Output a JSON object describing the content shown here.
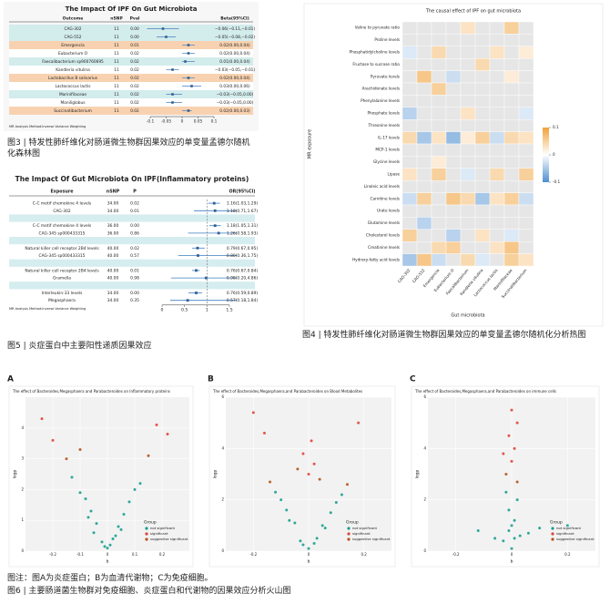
{
  "fig3": {
    "title": "The Impact Of IPF On Gut Microbiota",
    "headers": [
      "Outcome",
      "nSNP",
      "Pval",
      "Beta(95%CI)"
    ],
    "rows": [
      {
        "cells": [
          "CAG-302",
          "11",
          "0.00",
          "−0.06(−0.11,−0.01)"
        ],
        "est": -0.06,
        "lo": -0.11,
        "hi": -0.01
      },
      {
        "cells": [
          "CAG-552",
          "11",
          "0.00",
          "−0.05(−0.08,−0.02)"
        ],
        "est": -0.05,
        "lo": -0.08,
        "hi": -0.02
      },
      {
        "cells": [
          "Emergencia",
          "11",
          "0.01",
          "0.02(0.00,0.04)"
        ],
        "est": 0.02,
        "lo": 0.0,
        "hi": 0.04
      },
      {
        "cells": [
          "Eubacterium O",
          "11",
          "0.02",
          "0.02(0.00,0.04)"
        ],
        "est": 0.02,
        "lo": 0.0,
        "hi": 0.04
      },
      {
        "cells": [
          "Faecalibacterium sp900760695",
          "11",
          "0.02",
          "0.01(0.00,0.04)"
        ],
        "est": 0.01,
        "lo": 0.0,
        "hi": 0.04
      },
      {
        "cells": [
          "Kandleria vitulina",
          "11",
          "0.02",
          "−0.03(−0.05,−0.01)"
        ],
        "est": -0.03,
        "lo": -0.05,
        "hi": -0.01
      },
      {
        "cells": [
          "Lactobacillus B salivarius",
          "11",
          "0.02",
          "0.02(0.00,0.04)"
        ],
        "est": 0.02,
        "lo": 0.0,
        "hi": 0.04
      },
      {
        "cells": [
          "Lactococcus lactis",
          "11",
          "0.02",
          "0.03(0.00,0.06)"
        ],
        "est": 0.03,
        "lo": 0.0,
        "hi": 0.06
      },
      {
        "cells": [
          "Marinifilaceae",
          "11",
          "0.02",
          "−0.03(−0.05,0.00)"
        ],
        "est": -0.03,
        "lo": -0.05,
        "hi": 0.0
      },
      {
        "cells": [
          "Moniliglobus",
          "11",
          "0.02",
          "−0.03(−0.05,0.00)"
        ],
        "est": -0.03,
        "lo": -0.05,
        "hi": 0.0
      },
      {
        "cells": [
          "Succinatibacterium",
          "11",
          "0.02",
          "0.02(0.00,0.03)"
        ],
        "est": 0.02,
        "lo": 0.0,
        "hi": 0.03
      }
    ],
    "xlim": [
      -0.1,
      0.1
    ],
    "xticks": [
      -0.1,
      -0.05,
      0,
      0.05,
      0.1
    ],
    "note": "MR Analysis Method:Inverse Variance Weighting",
    "caption": "图3 | 特发性肺纤维化对肠道微生物群因果效应的单变量孟德尔随机化森林图"
  },
  "fig5": {
    "title": "The Impact Of Gut Microbiota On IPF(Inflammatory proteins)",
    "headers": [
      "Exposure",
      "nSNP",
      "P",
      "OR(95%CI)"
    ],
    "rows": [
      {
        "cells": [
          "C-C motif chemokine 4 levels",
          "34.00",
          "0.02",
          "1.16(1.03,1.29)"
        ],
        "est": 1.16,
        "lo": 1.03,
        "hi": 1.29
      },
      {
        "cells": [
          "CAG-302",
          "34.00",
          "0.01",
          "1.18(0.71,1.67)"
        ],
        "est": 1.18,
        "lo": 0.71,
        "hi": 1.67
      },
      null,
      {
        "cells": [
          "C-C motif chemokine 4 levels",
          "36.00",
          "0.00",
          "1.18(1.05,1.31)"
        ],
        "est": 1.18,
        "lo": 1.05,
        "hi": 1.31
      },
      {
        "cells": [
          "CAG-345 sp000433315",
          "36.00",
          "0.86",
          "1.26(0.58,1.93)"
        ],
        "est": 1.26,
        "lo": 0.58,
        "hi": 1.93
      },
      null,
      {
        "cells": [
          "Natural killer cell receptor 2B4 levels",
          "40.00",
          "0.02",
          "0.79(0.67,0.95)"
        ],
        "est": 0.79,
        "lo": 0.67,
        "hi": 0.95
      },
      {
        "cells": [
          "CAG-345 sp000433315",
          "40.00",
          "0.57",
          "0.80(0.36,1.75)"
        ],
        "est": 0.8,
        "lo": 0.36,
        "hi": 1.75
      },
      null,
      {
        "cells": [
          "Natural killer cell receptor 2B4 levels",
          "40.00",
          "0.01",
          "0.76(0.67,0.84)"
        ],
        "est": 0.76,
        "lo": 0.67,
        "hi": 0.84
      },
      {
        "cells": [
          "Gramella",
          "40.00",
          "0.98",
          "0.98(0.20,4.86)"
        ],
        "est": 0.98,
        "lo": 0.2,
        "hi": 4.86
      },
      null,
      {
        "cells": [
          "Interleukin-33 levels",
          "34.00",
          "0.00",
          "0.76(0.59,0.89)"
        ],
        "est": 0.76,
        "lo": 0.59,
        "hi": 0.89
      },
      {
        "cells": [
          "Megasphaera",
          "34.00",
          "0.35",
          "0.57(0.18,1.84)"
        ],
        "est": 0.57,
        "lo": 0.18,
        "hi": 1.84
      }
    ],
    "xlim": [
      0,
      1.5
    ],
    "xticks": [
      0,
      0.5,
      1,
      1.5
    ],
    "ref": 1,
    "note": "MR Analysis Method:Inverse Variance Weighting",
    "caption": "图5 | 炎症蛋白中主要阳性递质因果效应"
  },
  "fig4": {
    "title": "The causal effect of IPF on gut microbiota",
    "rows": [
      "Valine to pyruvate ratio",
      "Proline levels",
      "Phosphatidylcholine levels",
      "Fructose to sucrose ratio",
      "Pyruvate levels",
      "Arachidonate levels",
      "Phenylalanine levels",
      "Phosphate levels",
      "Threonine levels",
      "IL-17 levels",
      "MCP-1 levels",
      "Glycine levels",
      "Lipase",
      "Linoleic acid levels",
      "Carnitine levels",
      "Urate levels",
      "Glutamine levels",
      "Cholesterol levels",
      "Creatinine levels",
      "Hydroxy-fatty acid levels"
    ],
    "cols": [
      "CAG-302",
      "CAG-552",
      "Emergencia",
      "Eubacterium O",
      "Faecalibacterium",
      "Kandleria vitulina",
      "Lactococcus lactis",
      "Marinifilaceae",
      "Succinatibacterium"
    ],
    "values": [
      [
        null,
        null,
        null,
        null,
        0.03,
        null,
        null,
        0.05,
        null
      ],
      [
        null,
        null,
        null,
        null,
        null,
        null,
        null,
        null,
        null
      ],
      [
        -0.02,
        null,
        0.04,
        null,
        null,
        null,
        0.03,
        null,
        0.02
      ],
      [
        null,
        null,
        null,
        null,
        null,
        0.04,
        null,
        null,
        null
      ],
      [
        null,
        0.06,
        null,
        -0.03,
        null,
        null,
        null,
        0.02,
        null
      ],
      [
        null,
        null,
        0.05,
        null,
        null,
        null,
        null,
        null,
        null
      ],
      [
        null,
        null,
        null,
        null,
        null,
        null,
        null,
        null,
        null
      ],
      [
        -0.04,
        null,
        null,
        null,
        0.03,
        null,
        null,
        null,
        -0.02
      ],
      [
        null,
        null,
        null,
        null,
        null,
        null,
        null,
        null,
        null
      ],
      [
        0.04,
        -0.05,
        0.03,
        -0.06,
        0.02,
        0.05,
        -0.03,
        0.04,
        0.03
      ],
      [
        null,
        null,
        null,
        null,
        null,
        null,
        null,
        null,
        null
      ],
      [
        null,
        null,
        0.02,
        null,
        null,
        null,
        null,
        null,
        null
      ],
      [
        0.03,
        null,
        0.05,
        null,
        -0.02,
        null,
        0.04,
        null,
        0.05
      ],
      [
        null,
        null,
        null,
        null,
        null,
        null,
        null,
        null,
        null
      ],
      [
        -0.03,
        0.05,
        null,
        0.06,
        0.04,
        -0.05,
        0.03,
        0.05,
        -0.03
      ],
      [
        null,
        null,
        null,
        null,
        null,
        null,
        null,
        null,
        null
      ],
      [
        null,
        -0.04,
        null,
        null,
        null,
        null,
        null,
        null,
        null
      ],
      [
        0.05,
        null,
        null,
        -0.04,
        null,
        0.03,
        null,
        -0.02,
        null
      ],
      [
        null,
        null,
        0.04,
        0.05,
        null,
        null,
        0.03,
        0.06,
        null
      ],
      [
        -0.05,
        0.06,
        -0.03,
        null,
        0.04,
        -0.02,
        null,
        0.05,
        0.03
      ]
    ],
    "clim": [
      -0.1,
      0.1
    ],
    "cticks": [
      -0.1,
      0,
      0.1
    ],
    "xlabel": "Gut microbiota",
    "ylabel": "MR exposure",
    "caption": "图4 | 特发性肺纤维化对肠道微生物群因果效应的单变量孟德尔随机化分析热图"
  },
  "fig6": {
    "legend_title": "Group",
    "groups": [
      {
        "name": "not significant",
        "color": "#1a9e8f"
      },
      {
        "name": "significant",
        "color": "#e0443a"
      },
      {
        "name": "suggestive significant",
        "color": "#b5521b"
      }
    ],
    "panels": [
      {
        "letter": "A",
        "title": "The effect of Bacteroides,Megasphaera and Parabacteroides on Inflammatory proteins",
        "xlim": [
          -0.3,
          0.3
        ],
        "xticks": [
          -0.2,
          -0.1,
          0,
          0.1,
          0.2
        ],
        "ylim": [
          0,
          5
        ],
        "yticks": [
          0,
          1,
          2,
          3,
          4
        ],
        "points": [
          [
            0,
            0.1,
            0
          ],
          [
            0.02,
            0.4,
            0
          ],
          [
            -0.02,
            0.3,
            0
          ],
          [
            0.04,
            0.8,
            0
          ],
          [
            -0.04,
            0.9,
            0
          ],
          [
            0.06,
            1.2,
            0
          ],
          [
            -0.06,
            1.3,
            0
          ],
          [
            0.08,
            1.6,
            0
          ],
          [
            -0.08,
            1.7,
            0
          ],
          [
            0.1,
            2.0,
            0
          ],
          [
            -0.1,
            1.9,
            0
          ],
          [
            0.12,
            2.2,
            0
          ],
          [
            -0.13,
            2.4,
            0
          ],
          [
            0.01,
            0.2,
            0
          ],
          [
            -0.01,
            0.15,
            0
          ],
          [
            0.05,
            0.7,
            0
          ],
          [
            -0.07,
            1.1,
            0
          ],
          [
            0.03,
            0.5,
            0
          ],
          [
            -0.05,
            0.6,
            0
          ],
          [
            0.15,
            3.1,
            2
          ],
          [
            -0.15,
            3.0,
            2
          ],
          [
            -0.2,
            3.6,
            1
          ],
          [
            0.22,
            3.8,
            1
          ],
          [
            -0.24,
            4.3,
            1
          ],
          [
            0.18,
            4.1,
            1
          ],
          [
            -0.1,
            3.3,
            2
          ]
        ]
      },
      {
        "letter": "B",
        "title": "The effect of Bacteroides,Megasphaera,and Parabacteroides on Blood Metabolites",
        "xlim": [
          -0.3,
          0.3
        ],
        "xticks": [
          -0.2,
          0,
          0.2
        ],
        "ylim": [
          0,
          6
        ],
        "yticks": [
          0,
          2,
          4,
          6
        ],
        "points": [
          [
            0,
            0.1,
            0
          ],
          [
            0.03,
            0.5,
            0
          ],
          [
            -0.03,
            0.4,
            0
          ],
          [
            0.05,
            1.0,
            0
          ],
          [
            -0.05,
            1.1,
            0
          ],
          [
            0.08,
            1.5,
            0
          ],
          [
            -0.08,
            1.6,
            0
          ],
          [
            0.1,
            1.9,
            0
          ],
          [
            -0.1,
            2.0,
            0
          ],
          [
            0.12,
            2.2,
            0
          ],
          [
            -0.12,
            2.3,
            0
          ],
          [
            0.02,
            0.3,
            0
          ],
          [
            -0.02,
            0.25,
            0
          ],
          [
            0.06,
            0.9,
            0
          ],
          [
            -0.07,
            1.2,
            0
          ],
          [
            0.14,
            2.6,
            2
          ],
          [
            -0.14,
            2.7,
            2
          ],
          [
            0.0,
            3.0,
            1
          ],
          [
            0.02,
            3.4,
            1
          ],
          [
            -0.02,
            3.8,
            1
          ],
          [
            0.01,
            4.3,
            1
          ],
          [
            -0.16,
            4.6,
            1
          ],
          [
            0.18,
            5.0,
            1
          ],
          [
            -0.2,
            5.4,
            1
          ],
          [
            0.04,
            2.8,
            2
          ],
          [
            -0.04,
            3.2,
            2
          ]
        ]
      },
      {
        "letter": "C",
        "title": "The effect of Bacteroides,Megasphaera,and Parabacteroides on immune cells",
        "xlim": [
          -0.3,
          0.3
        ],
        "xticks": [
          -0.2,
          0,
          0.2
        ],
        "ylim": [
          0,
          6
        ],
        "yticks": [
          0,
          2,
          4,
          6
        ],
        "points": [
          [
            0,
            0.1,
            0
          ],
          [
            0.01,
            0.5,
            0
          ],
          [
            -0.01,
            0.8,
            0
          ],
          [
            0.01,
            1.2,
            0
          ],
          [
            -0.01,
            1.6,
            0
          ],
          [
            0.02,
            2.0,
            0
          ],
          [
            -0.02,
            2.3,
            0
          ],
          [
            0.0,
            1.0,
            0
          ],
          [
            0.03,
            0.6,
            0
          ],
          [
            -0.03,
            0.4,
            0
          ],
          [
            0.06,
            0.7,
            0
          ],
          [
            -0.06,
            0.5,
            0
          ],
          [
            0.1,
            0.9,
            0
          ],
          [
            -0.12,
            0.8,
            0
          ],
          [
            0.02,
            2.7,
            2
          ],
          [
            -0.02,
            3.0,
            2
          ],
          [
            0.0,
            3.5,
            1
          ],
          [
            0.01,
            4.0,
            1
          ],
          [
            -0.01,
            4.5,
            1
          ],
          [
            0.02,
            5.0,
            1
          ],
          [
            0.0,
            5.5,
            1
          ],
          [
            -0.03,
            3.8,
            1
          ],
          [
            0.2,
            1.0,
            0
          ]
        ]
      }
    ],
    "xlabel": "b",
    "ylabel": "logp",
    "note": "图注：图A为炎症蛋白；B为血清代谢物；C为免疫细胞。",
    "caption": "图6 | 主要肠道菌生物群对免疫细胞、炎症蛋白和代谢物的因果效应分析火山图"
  }
}
